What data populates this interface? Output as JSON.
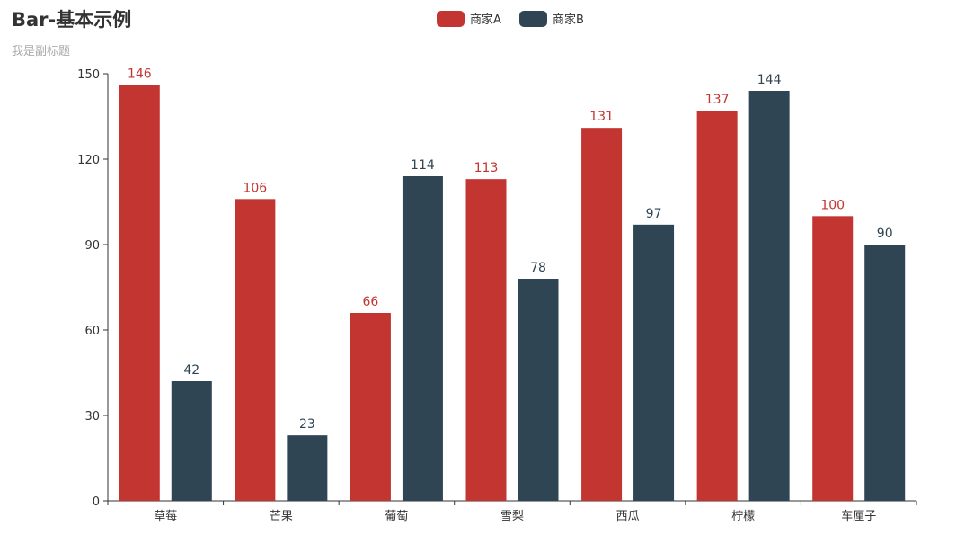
{
  "chart_data": {
    "type": "bar",
    "title": "Bar-基本示例",
    "subtitle": "我是副标题",
    "categories": [
      "草莓",
      "芒果",
      "葡萄",
      "雪梨",
      "西瓜",
      "柠檬",
      "车厘子"
    ],
    "series": [
      {
        "name": "商家A",
        "color": "#c23531",
        "values": [
          146,
          106,
          66,
          113,
          131,
          137,
          100
        ]
      },
      {
        "name": "商家B",
        "color": "#2f4554",
        "values": [
          42,
          23,
          114,
          78,
          97,
          144,
          90
        ]
      }
    ],
    "ylim": [
      0,
      150
    ],
    "yticks": [
      0,
      30,
      60,
      90,
      120,
      150
    ],
    "grid": false,
    "legend_position": "top-center",
    "data_labels": true
  }
}
